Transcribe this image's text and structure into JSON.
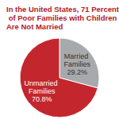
{
  "chart_data": {
    "type": "pie",
    "title": "In the United States, 71 Percent of Poor Families with Children Are Not Married",
    "categories": [
      "Married Families",
      "Unmarried Families"
    ],
    "values": [
      29.2,
      70.8
    ],
    "value_labels": [
      "29.2%",
      "70.8%"
    ],
    "colors": [
      "#a7a9ac",
      "#c4262e"
    ],
    "data_labels": true
  }
}
